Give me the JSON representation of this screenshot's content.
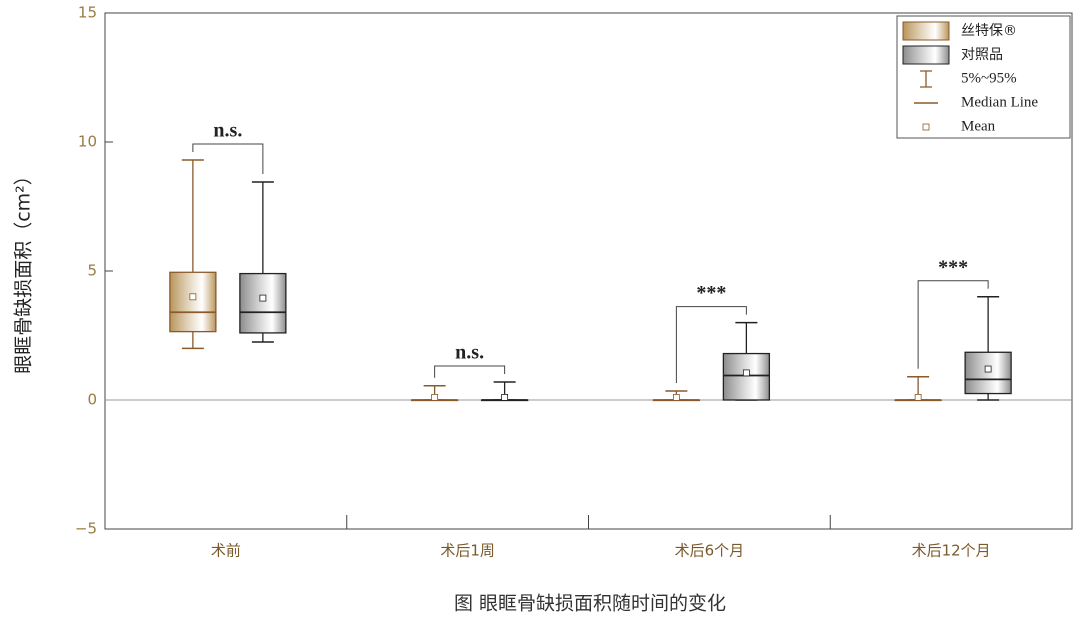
{
  "chart_data": {
    "type": "box",
    "y_label": "眼眶骨缺损面积（cm²）",
    "caption": "图  眼眶骨缺损面积随时间的变化",
    "categories": [
      "术前",
      "术后1周",
      "术后6个月",
      "术后12个月"
    ],
    "ylim": [
      -5,
      15
    ],
    "yticks": [
      {
        "value": -5,
        "label": "−5"
      },
      0,
      5,
      10,
      15
    ],
    "series": [
      {
        "name": "丝特保®",
        "color": "#b8955a",
        "line_color": "#8b5a2b",
        "low": [
          2.0,
          0,
          0,
          0
        ],
        "q1": [
          2.65,
          0,
          0,
          0
        ],
        "median": [
          3.4,
          0,
          0,
          0
        ],
        "q3": [
          4.95,
          0,
          0,
          0
        ],
        "high": [
          9.3,
          0.55,
          0.35,
          0.9
        ],
        "mean": [
          4.0,
          0.1,
          0.1,
          0.1
        ]
      },
      {
        "name": "对照品",
        "color": "#8c8c8c",
        "line_color": "#222222",
        "low": [
          2.25,
          0,
          0,
          0
        ],
        "q1": [
          2.6,
          0,
          0,
          0.25
        ],
        "median": [
          3.4,
          0,
          0.95,
          0.8
        ],
        "q3": [
          4.9,
          0,
          1.8,
          1.85
        ],
        "high": [
          8.45,
          0.7,
          3.0,
          4.0
        ],
        "mean": [
          3.95,
          0.1,
          1.05,
          1.2
        ]
      }
    ],
    "significance": [
      "n.s.",
      "n.s.",
      "***",
      "***"
    ],
    "whisker_label": "5%~95%",
    "median_label": "Median Line",
    "mean_label": "Mean"
  }
}
